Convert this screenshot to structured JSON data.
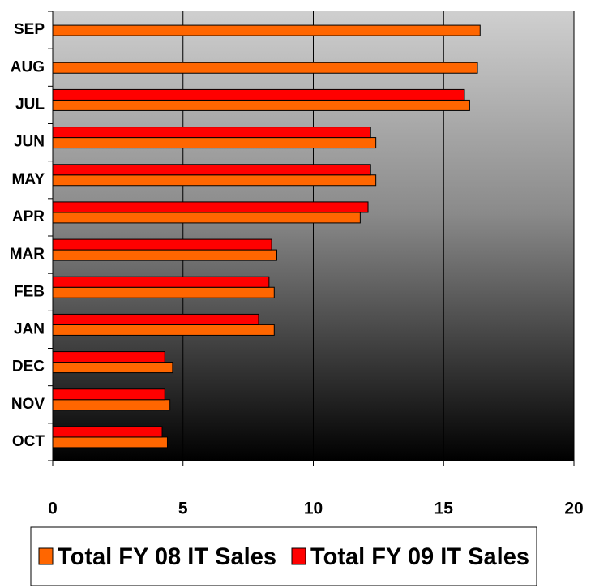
{
  "chart_data": {
    "type": "bar",
    "orientation": "horizontal",
    "categories": [
      "OCT",
      "NOV",
      "DEC",
      "JAN",
      "FEB",
      "MAR",
      "APR",
      "MAY",
      "JUN",
      "JUL",
      "AUG",
      "SEP"
    ],
    "series": [
      {
        "name": "Total FY 08 IT Sales",
        "color": "#ff6600",
        "values": [
          4.4,
          4.5,
          4.6,
          8.5,
          8.5,
          8.6,
          11.8,
          12.4,
          12.4,
          16.0,
          16.3,
          16.4
        ]
      },
      {
        "name": "Total FY 09 IT Sales",
        "color": "#ff0000",
        "values": [
          4.2,
          4.3,
          4.3,
          7.9,
          8.3,
          8.4,
          12.1,
          12.2,
          12.2,
          15.8,
          null,
          null
        ]
      }
    ],
    "xlim": [
      0,
      20
    ],
    "xticks": [
      0,
      5,
      10,
      15,
      20
    ],
    "grid": true,
    "legend": "bottom"
  }
}
